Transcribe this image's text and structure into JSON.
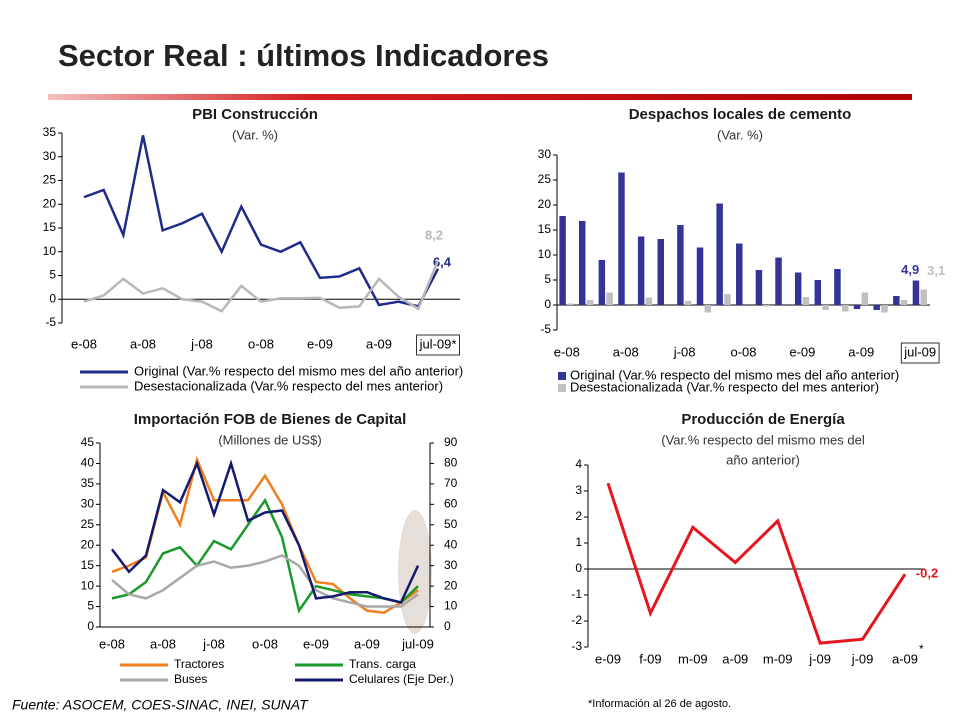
{
  "header": {
    "title": "Sector Real : últimos Indicadores"
  },
  "chart_data": [
    {
      "type": "line",
      "title": "PBI Construcción",
      "subtitle": "(Var. %)",
      "categories": [
        "e-08",
        null,
        null,
        "a-08",
        null,
        null,
        "j-08",
        null,
        null,
        "o-08",
        null,
        null,
        "e-09",
        null,
        null,
        "a-09",
        null,
        null,
        "jul-09*"
      ],
      "series": [
        {
          "name": "Original (Var.% respecto del mismo mes del año anterior)",
          "color": "#1f2a8a",
          "values": [
            21.5,
            23,
            13.5,
            34.5,
            14.5,
            16,
            18,
            10,
            19.5,
            11.5,
            10,
            12,
            4.5,
            4.8,
            6.5,
            -1.2,
            -0.5,
            -1.5,
            6.4
          ],
          "value_labels": [
            null,
            null,
            null,
            null,
            null,
            null,
            null,
            null,
            null,
            null,
            null,
            null,
            null,
            null,
            null,
            null,
            null,
            null,
            "6,4"
          ]
        },
        {
          "name": "Desestacionalizada (Var.% respecto del mes anterior)",
          "color": "#b8b8b8",
          "values": [
            -0.5,
            0.8,
            4.3,
            1.2,
            2.3,
            0,
            -0.5,
            -2.5,
            2.8,
            -0.5,
            0.2,
            0.2,
            0.3,
            -1.8,
            -1.5,
            4.3,
            0.5,
            -2,
            8.2
          ],
          "value_labels": [
            null,
            null,
            null,
            null,
            null,
            null,
            null,
            null,
            null,
            null,
            null,
            null,
            null,
            null,
            null,
            null,
            null,
            null,
            "8,2"
          ]
        }
      ],
      "ylim": [
        -5,
        35
      ],
      "yticks": [
        -5,
        0,
        5,
        10,
        15,
        20,
        25,
        30,
        35
      ]
    },
    {
      "type": "bar",
      "title": "Despachos locales de cemento",
      "subtitle": "(Var. %)",
      "categories": [
        "e-08",
        null,
        null,
        "a-08",
        null,
        null,
        "j-08",
        null,
        null,
        "o-08",
        null,
        null,
        "e-09",
        null,
        null,
        "a-09",
        null,
        null,
        "jul-09"
      ],
      "series": [
        {
          "name": "Original (Var.% respecto del mismo mes del año anterior)",
          "color": "#333399",
          "values": [
            17.8,
            16.8,
            9,
            26.5,
            13.7,
            13.2,
            16,
            11.5,
            20.3,
            12.3,
            7,
            9.5,
            6.5,
            5,
            7.2,
            -0.8,
            -1,
            1.8,
            4.9
          ],
          "value_labels": [
            null,
            null,
            null,
            null,
            null,
            null,
            null,
            null,
            null,
            null,
            null,
            null,
            null,
            null,
            null,
            null,
            null,
            null,
            "4,9"
          ]
        },
        {
          "name": "Desestacionalizada (Var.% respecto del mes anterior)",
          "color": "#c0c0c0",
          "values": [
            0.3,
            1,
            2.5,
            0,
            1.5,
            0,
            0.8,
            -1.5,
            2.2,
            0,
            -0.3,
            0,
            1.6,
            -1,
            -1.3,
            2.5,
            -1.5,
            1,
            3.1
          ],
          "value_labels": [
            null,
            null,
            null,
            null,
            null,
            null,
            null,
            null,
            null,
            null,
            null,
            null,
            null,
            null,
            null,
            null,
            null,
            null,
            "3,1"
          ]
        }
      ],
      "ylim": [
        -5,
        30
      ],
      "yticks": [
        -5,
        0,
        5,
        10,
        15,
        20,
        25,
        30
      ]
    },
    {
      "type": "line",
      "title": "Importación FOB de Bienes de Capital",
      "subtitle": "(Millones de US$)",
      "categories": [
        "e-08",
        null,
        null,
        "a-08",
        null,
        null,
        "j-08",
        null,
        null,
        "o-08",
        null,
        null,
        "e-09",
        null,
        null,
        "a-09",
        null,
        null,
        "jul-09"
      ],
      "series": [
        {
          "name": "Tractores",
          "color": "#f07f1e",
          "values": [
            13.5,
            15,
            17,
            33,
            25,
            41,
            31,
            31,
            31,
            37,
            30,
            20,
            11,
            10.5,
            7,
            4,
            3.5,
            6,
            9
          ]
        },
        {
          "name": "Trans. carga",
          "color": "#1a9a2a",
          "values": [
            7,
            8,
            11,
            18,
            19.5,
            15,
            21,
            19,
            25,
            31,
            22,
            4,
            10,
            9,
            8,
            7.5,
            7,
            6,
            10
          ]
        },
        {
          "name": "Buses",
          "color": "#a8a8a8",
          "values": [
            11.5,
            8,
            7,
            9,
            12,
            15,
            16,
            14.5,
            15,
            16,
            17.5,
            15,
            9,
            7,
            6,
            5,
            5,
            5,
            8
          ]
        },
        {
          "name": "Celulares (Eje Der.)",
          "color": "#141b6e",
          "axis": "y2",
          "values": [
            38,
            27,
            35,
            67,
            61,
            80,
            55,
            80,
            52,
            56,
            57,
            40,
            14,
            15,
            17,
            17,
            14,
            12,
            30
          ]
        }
      ],
      "ylim": [
        0,
        45
      ],
      "yticks": [
        0,
        5,
        10,
        15,
        20,
        25,
        30,
        35,
        40,
        45
      ],
      "y2lim": [
        0,
        90
      ],
      "y2ticks": [
        0,
        10,
        20,
        30,
        40,
        50,
        60,
        70,
        80,
        90
      ]
    },
    {
      "type": "line",
      "title": "Producción de Energía",
      "subtitle_lines": [
        "(Var.% respecto del mismo mes del",
        "año anterior)"
      ],
      "categories": [
        "e-09",
        "f-09",
        "m-09",
        "a-09",
        "m-09",
        "j-09",
        "j-09",
        "a-09"
      ],
      "series": [
        {
          "color": "#e8141e",
          "values": [
            3.3,
            -1.7,
            1.6,
            0.25,
            1.85,
            -2.85,
            -2.7,
            -0.2
          ],
          "value_labels": [
            null,
            null,
            null,
            null,
            null,
            null,
            null,
            "-0,2"
          ]
        }
      ],
      "annotation": "*",
      "ylim": [
        -3,
        4
      ],
      "yticks": [
        -3,
        -2,
        -1,
        0,
        1,
        2,
        3,
        4
      ]
    }
  ],
  "footer": {
    "source": "Fuente: ASOCEM, COES-SINAC, INEI, SUNAT",
    "note": "*Información al 26 de agosto."
  }
}
